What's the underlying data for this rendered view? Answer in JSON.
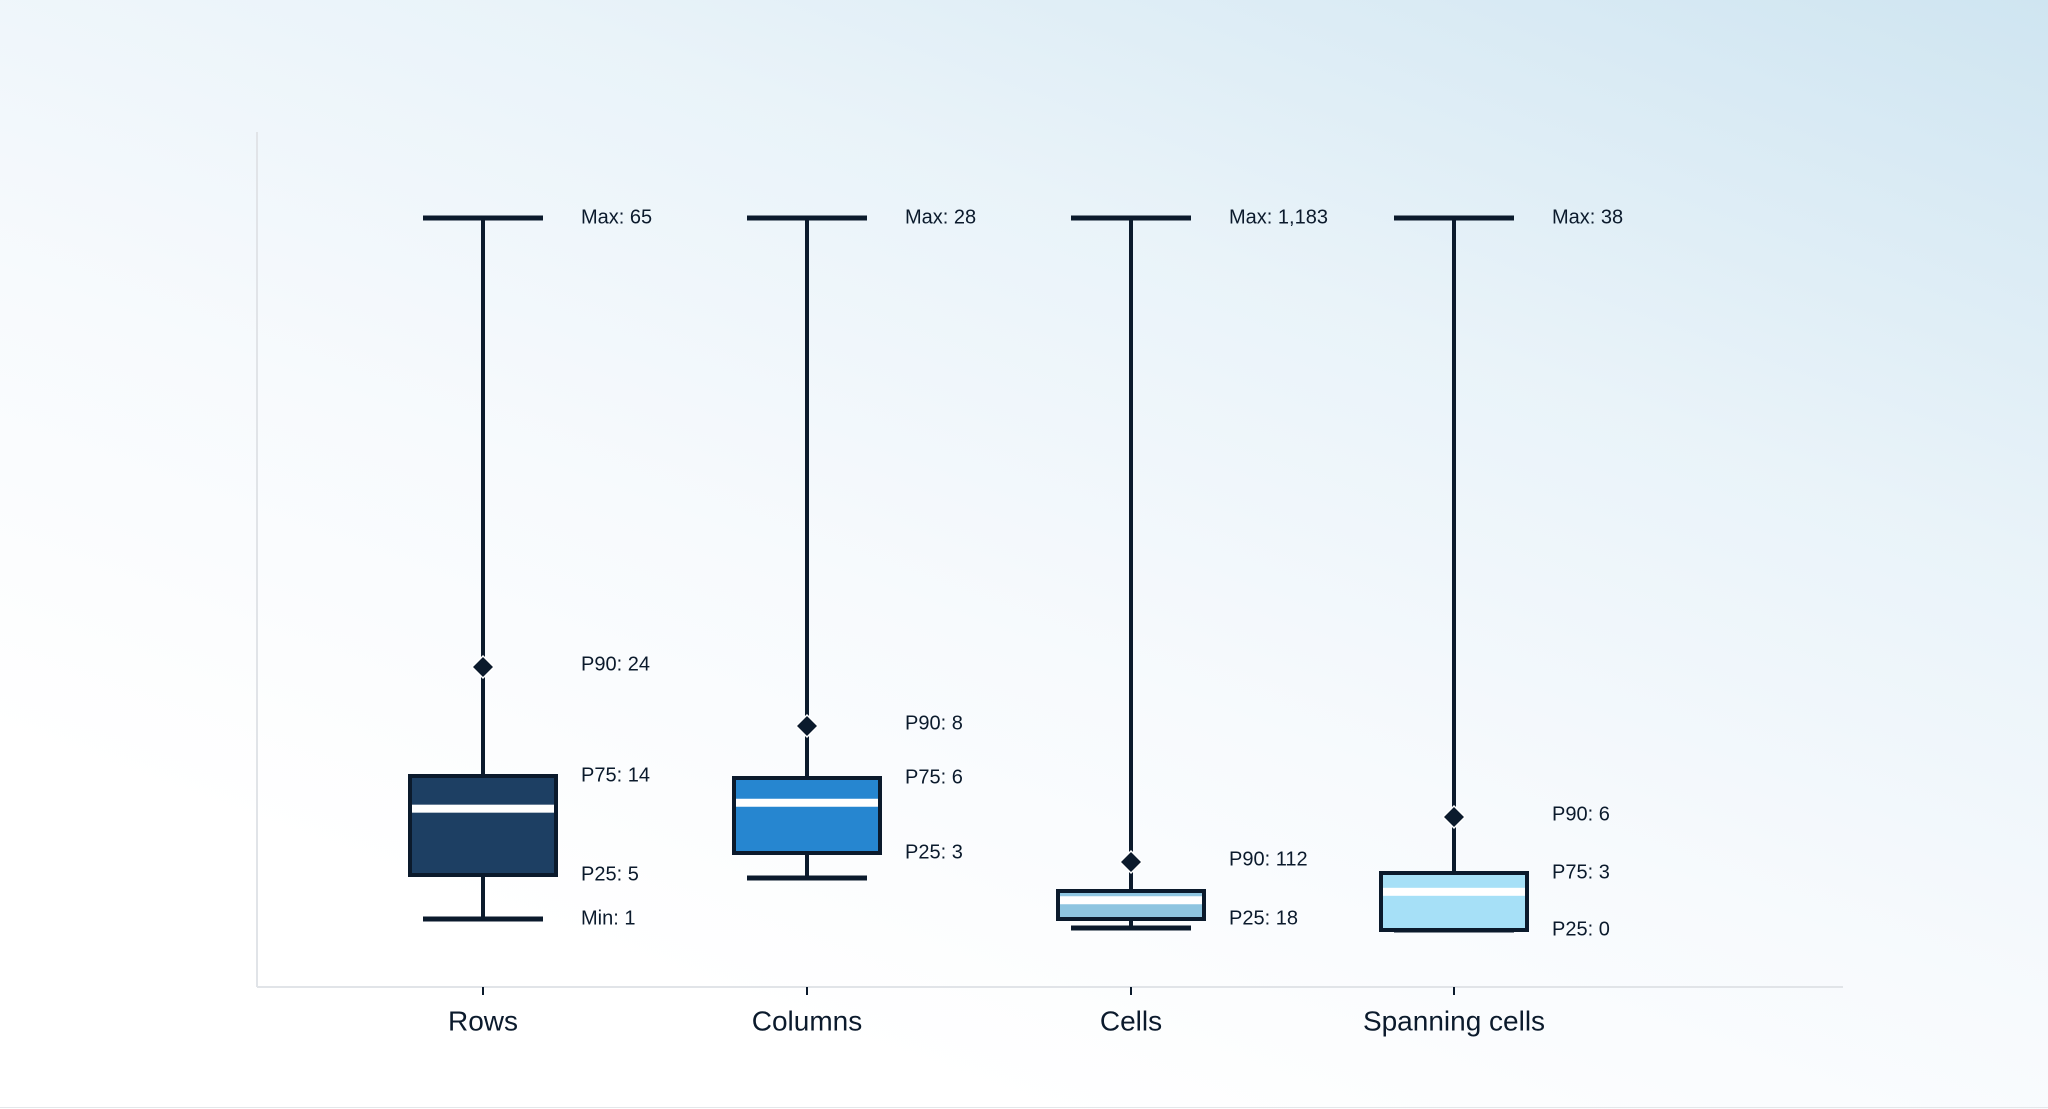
{
  "chart_data": {
    "type": "box",
    "title": "",
    "xlabel": "",
    "ylabel": "",
    "scale": "nonlinear (display compressed)",
    "categories": [
      "Rows",
      "Columns",
      "Cells",
      "Spanning cells"
    ],
    "series": [
      {
        "name": "Rows",
        "min": 1,
        "p25": 5,
        "p75": 14,
        "p90": 24,
        "max": 65,
        "color": "#1d3f63",
        "labels": {
          "max": "Max: 65",
          "p90": "P90: 24",
          "p75": "P75: 14",
          "p25": "P25: 5",
          "min": "Min: 1"
        }
      },
      {
        "name": "Columns",
        "min": 1,
        "p25": 3,
        "p75": 6,
        "p90": 8,
        "max": 28,
        "color": "#2686d0",
        "labels": {
          "max": "Max: 28",
          "p90": "P90: 8",
          "p75": "P75: 6",
          "p25": "P25: 3"
        }
      },
      {
        "name": "Cells",
        "min": 1,
        "p25": 18,
        "p75": 40,
        "p90": 112,
        "max": 1183,
        "color": "#8fc5e0",
        "labels": {
          "max": "Max: 1,183",
          "p90": "P90: 112",
          "p25": "P25: 18"
        }
      },
      {
        "name": "Spanning cells",
        "min": 0,
        "p25": 0,
        "p75": 3,
        "p90": 6,
        "max": 38,
        "color": "#a6e0f7",
        "labels": {
          "max": "Max: 38",
          "p90": "P90: 6",
          "p75": "P75: 3",
          "p25": "P25: 0"
        }
      }
    ],
    "grid": false,
    "legend": "none"
  }
}
